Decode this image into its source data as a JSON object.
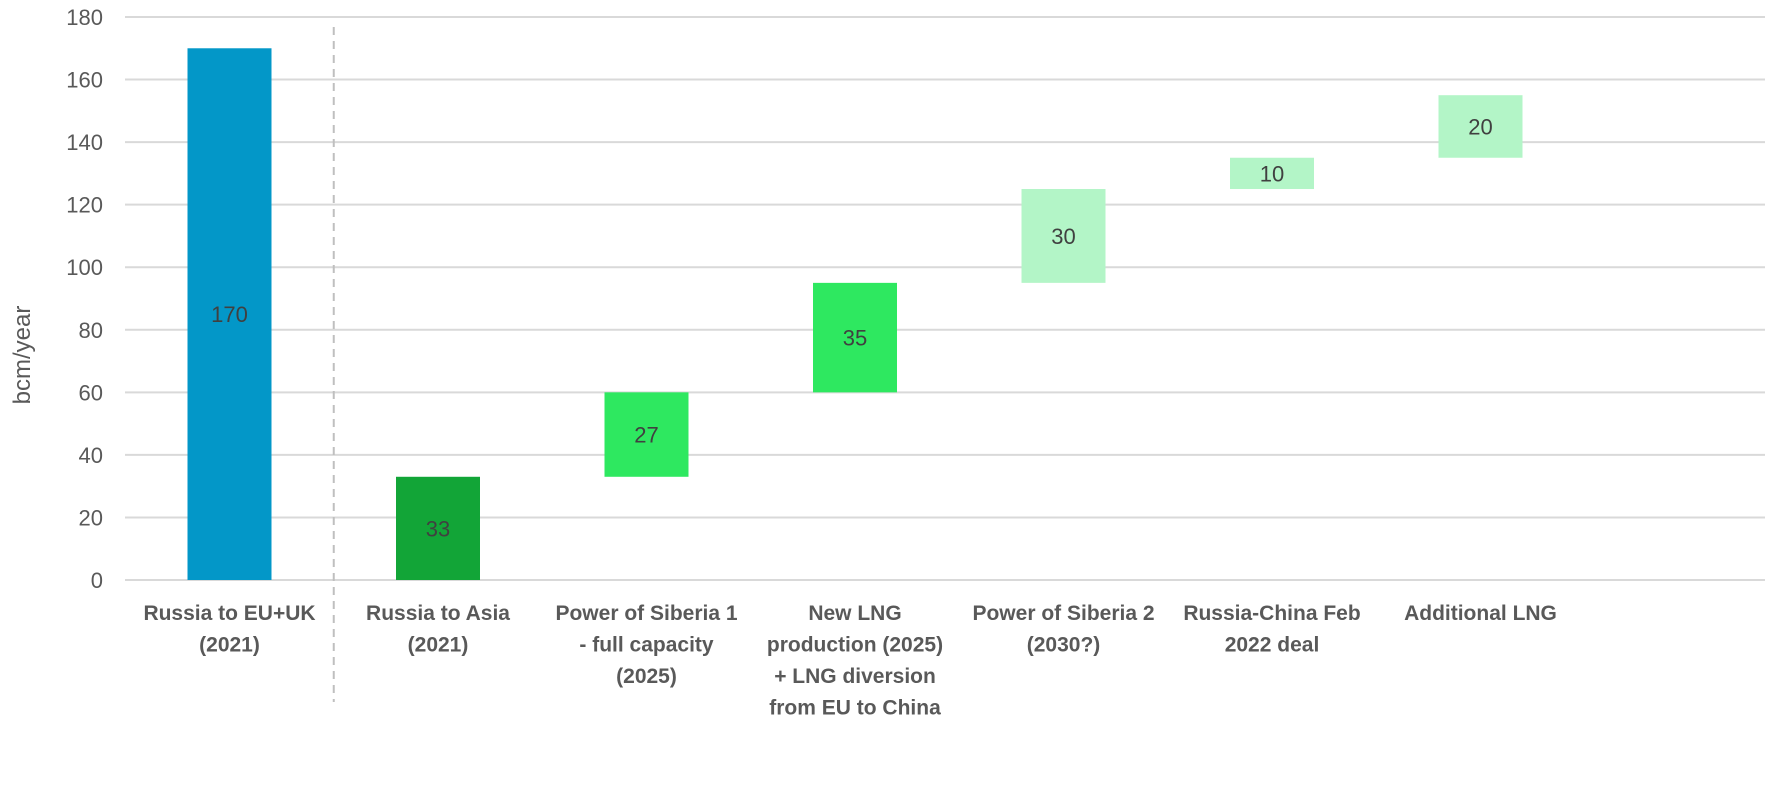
{
  "chart_data": {
    "type": "bar",
    "subtype": "waterfall",
    "title": "",
    "xlabel": "",
    "ylabel": "bcm/year",
    "ylim": [
      0,
      180
    ],
    "yticks": [
      0,
      20,
      40,
      60,
      80,
      100,
      120,
      140,
      160,
      180
    ],
    "grid": true,
    "legend": "none",
    "categories": [
      [
        "Russia to EU+UK",
        "(2021)"
      ],
      [
        "Russia to Asia",
        "(2021)"
      ],
      [
        "Power of Siberia 1",
        "- full capacity",
        "(2025)"
      ],
      [
        "New LNG",
        "production (2025)",
        "+ LNG diversion",
        "from EU to China"
      ],
      [
        "Power of Siberia 2",
        "(2030?)"
      ],
      [
        "Russia-China Feb",
        "2022 deal"
      ],
      [
        "Additional LNG"
      ]
    ],
    "bars": [
      {
        "base": 0,
        "value": 170,
        "label": "170",
        "color": "#0397c8"
      },
      {
        "base": 0,
        "value": 33,
        "label": "33",
        "color": "#12a537"
      },
      {
        "base": 33,
        "value": 27,
        "label": "27",
        "color": "#2ee860"
      },
      {
        "base": 60,
        "value": 35,
        "label": "35",
        "color": "#2ee860"
      },
      {
        "base": 95,
        "value": 30,
        "label": "30",
        "color": "#b3f5c7"
      },
      {
        "base": 125,
        "value": 10,
        "label": "10",
        "color": "#b3f5c7"
      },
      {
        "base": 135,
        "value": 20,
        "label": "20",
        "color": "#b3f5c7"
      }
    ],
    "separator_after_category": 0
  }
}
